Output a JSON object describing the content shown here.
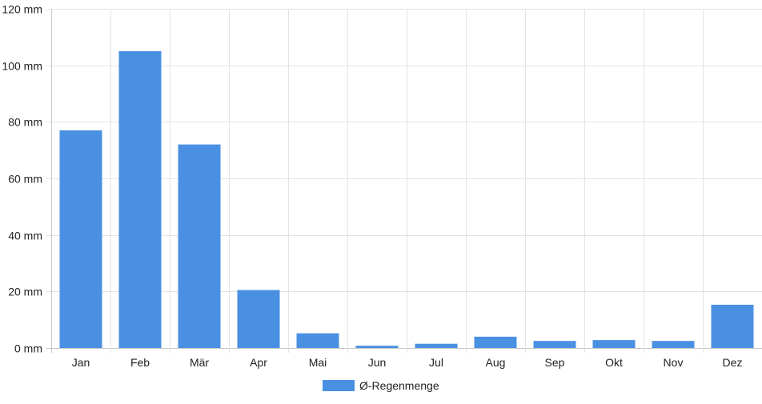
{
  "chart_data": {
    "type": "bar",
    "categories": [
      "Jan",
      "Feb",
      "Mär",
      "Apr",
      "Mai",
      "Jun",
      "Jul",
      "Aug",
      "Sep",
      "Okt",
      "Nov",
      "Dez"
    ],
    "series": [
      {
        "name": "Ø-Regenmenge",
        "values": [
          77,
          105,
          72,
          20.5,
          5.2,
          0.8,
          1.5,
          4,
          2.5,
          2.8,
          2.5,
          15.3
        ],
        "color": "#4a90e2"
      }
    ],
    "y_ticks": [
      "0 mm",
      "20 mm",
      "40 mm",
      "60 mm",
      "80 mm",
      "100 mm",
      "120 mm"
    ],
    "ylim": [
      0,
      120
    ],
    "y_unit": "mm",
    "grid": true,
    "legend_position": "bottom-center"
  }
}
